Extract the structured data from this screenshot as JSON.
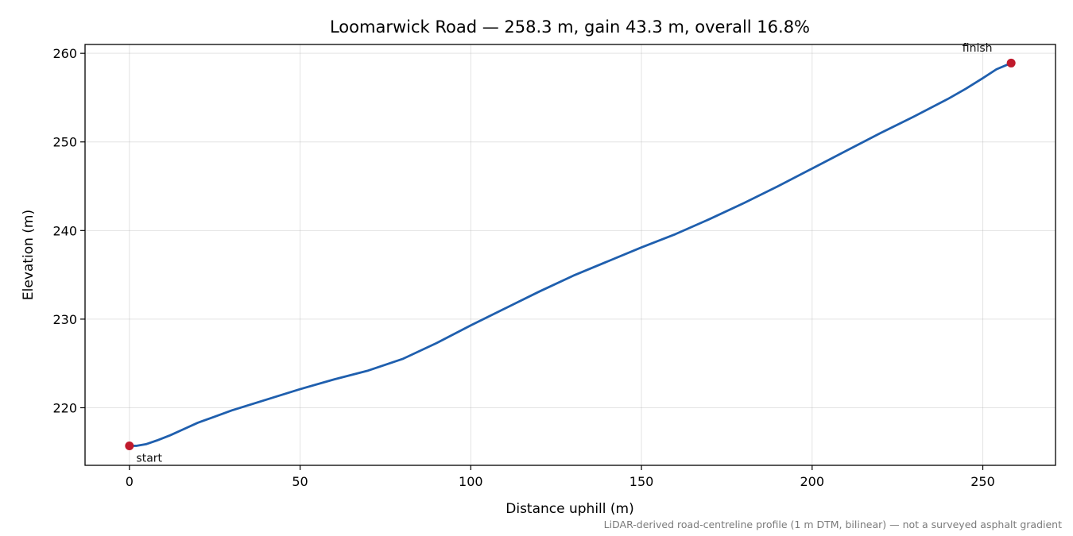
{
  "chart_data": {
    "type": "line",
    "title": "Loomarwick Road — 258.3 m, gain 43.3 m, overall 16.8%",
    "xlabel": "Distance uphill (m)",
    "ylabel": "Elevation (m)",
    "xlim": [
      -13,
      271.3
    ],
    "ylim": [
      213.5,
      261
    ],
    "xticks": [
      0,
      50,
      100,
      150,
      200,
      250
    ],
    "yticks": [
      220,
      230,
      240,
      250,
      260
    ],
    "grid": true,
    "series": [
      {
        "color": "#1f5fae",
        "x": [
          0,
          2,
          5,
          8,
          12,
          16,
          20,
          25,
          30,
          40,
          50,
          60,
          70,
          80,
          90,
          100,
          110,
          120,
          130,
          140,
          150,
          160,
          170,
          180,
          190,
          200,
          210,
          220,
          230,
          240,
          245,
          250,
          254,
          258.3
        ],
        "y": [
          215.7,
          215.7,
          215.9,
          216.3,
          216.9,
          217.6,
          218.3,
          219.0,
          219.7,
          220.9,
          222.1,
          223.2,
          224.2,
          225.5,
          227.3,
          229.3,
          231.2,
          233.1,
          234.9,
          236.5,
          238.1,
          239.6,
          241.3,
          243.1,
          245.0,
          247.0,
          249.0,
          251.0,
          252.9,
          254.9,
          256.0,
          257.2,
          258.2,
          258.9
        ]
      }
    ],
    "points": [
      {
        "name": "start",
        "x": 0,
        "y": 215.7,
        "color": "#c01a2c"
      },
      {
        "name": "finish",
        "x": 258.3,
        "y": 258.9,
        "color": "#c01a2c"
      }
    ],
    "annotations": [
      {
        "text": "start",
        "x": 2,
        "y": 213.9
      },
      {
        "text": "finish",
        "x": 244,
        "y": 260.2
      }
    ],
    "footnote": "LiDAR-derived road-centreline profile (1 m DTM, bilinear) — not a surveyed asphalt gradient"
  }
}
